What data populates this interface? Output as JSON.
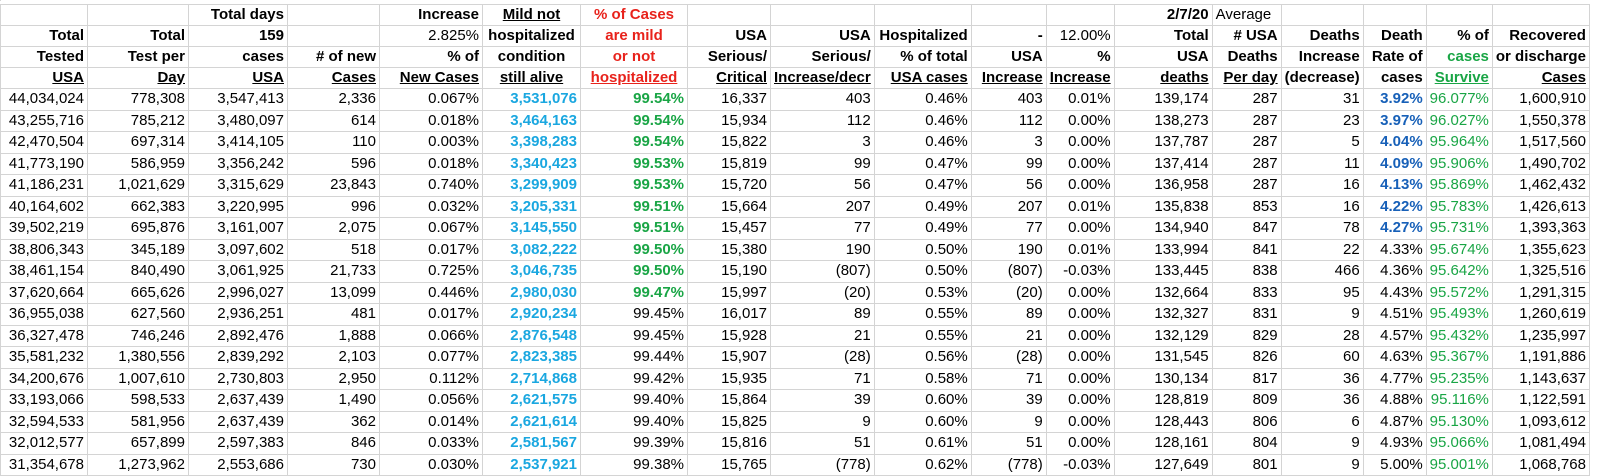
{
  "header": {
    "row1": [
      "",
      "",
      "Total days",
      "",
      "Increase",
      "Mild  not",
      "% of Cases",
      "",
      "",
      "",
      "",
      "",
      "2/7/20",
      "Average",
      "",
      "",
      "",
      ""
    ],
    "row2": [
      "Total",
      "Total",
      "159",
      "",
      "2.825%",
      "hospitalized",
      "are mild",
      "USA",
      "USA",
      "Hospitalized",
      "-",
      "12.00%",
      "Total",
      "# USA",
      "Deaths",
      "Death",
      "% of",
      "Recovered"
    ],
    "row3": [
      "Tested",
      "Test per",
      "cases",
      "# of  new",
      "% of",
      "condition",
      "or  not",
      "Serious/",
      "Serious/",
      "% of  total",
      "USA",
      "%",
      "USA",
      "Deaths",
      "Increase",
      "Rate of",
      "cases",
      "or discharge"
    ],
    "row4": [
      "USA",
      "Day",
      "USA",
      "Cases",
      "New Cases",
      "still alive",
      "hospitalized",
      "Critical",
      "Increase/decr",
      "USA cases",
      "Increase",
      "Increase",
      "deaths",
      "Per day",
      "(decrease)",
      "cases",
      "Survive",
      "Cases"
    ]
  },
  "rows": [
    [
      "44,034,024",
      "778,308",
      "3,547,413",
      "2,336",
      "0.067%",
      "3,531,076",
      "99.54%",
      "16,337",
      "403",
      "0.46%",
      "403",
      "0.01%",
      "139,174",
      "287",
      "31",
      "3.92%",
      "96.077%",
      "1,600,910"
    ],
    [
      "43,255,716",
      "785,212",
      "3,480,097",
      "614",
      "0.018%",
      "3,464,163",
      "99.54%",
      "15,934",
      "112",
      "0.46%",
      "112",
      "0.00%",
      "138,273",
      "287",
      "23",
      "3.97%",
      "96.027%",
      "1,550,378"
    ],
    [
      "42,470,504",
      "697,314",
      "3,414,105",
      "110",
      "0.003%",
      "3,398,283",
      "99.54%",
      "15,822",
      "3",
      "0.46%",
      "3",
      "0.00%",
      "137,787",
      "287",
      "5",
      "4.04%",
      "95.964%",
      "1,517,560"
    ],
    [
      "41,773,190",
      "586,959",
      "3,356,242",
      "596",
      "0.018%",
      "3,340,423",
      "99.53%",
      "15,819",
      "99",
      "0.47%",
      "99",
      "0.00%",
      "137,414",
      "287",
      "11",
      "4.09%",
      "95.906%",
      "1,490,702"
    ],
    [
      "41,186,231",
      "1,021,629",
      "3,315,629",
      "23,843",
      "0.740%",
      "3,299,909",
      "99.53%",
      "15,720",
      "56",
      "0.47%",
      "56",
      "0.00%",
      "136,958",
      "287",
      "16",
      "4.13%",
      "95.869%",
      "1,462,432"
    ],
    [
      "40,164,602",
      "662,383",
      "3,220,995",
      "996",
      "0.032%",
      "3,205,331",
      "99.51%",
      "15,664",
      "207",
      "0.49%",
      "207",
      "0.01%",
      "135,838",
      "853",
      "16",
      "4.22%",
      "95.783%",
      "1,426,613"
    ],
    [
      "39,502,219",
      "695,876",
      "3,161,007",
      "2,075",
      "0.067%",
      "3,145,550",
      "99.51%",
      "15,457",
      "77",
      "0.49%",
      "77",
      "0.00%",
      "134,940",
      "847",
      "78",
      "4.27%",
      "95.731%",
      "1,393,363"
    ],
    [
      "38,806,343",
      "345,189",
      "3,097,602",
      "518",
      "0.017%",
      "3,082,222",
      "99.50%",
      "15,380",
      "190",
      "0.50%",
      "190",
      "0.01%",
      "133,994",
      "841",
      "22",
      "4.33%",
      "95.674%",
      "1,355,623"
    ],
    [
      "38,461,154",
      "840,490",
      "3,061,925",
      "21,733",
      "0.725%",
      "3,046,735",
      "99.50%",
      "15,190",
      "(807)",
      "0.50%",
      "(807)",
      "-0.03%",
      "133,445",
      "838",
      "466",
      "4.36%",
      "95.642%",
      "1,325,516"
    ],
    [
      "37,620,664",
      "665,626",
      "2,996,027",
      "13,099",
      "0.446%",
      "2,980,030",
      "99.47%",
      "15,997",
      "(20)",
      "0.53%",
      "(20)",
      "0.00%",
      "132,664",
      "833",
      "95",
      "4.43%",
      "95.572%",
      "1,291,315"
    ],
    [
      "36,955,038",
      "627,560",
      "2,936,251",
      "481",
      "0.017%",
      "2,920,234",
      "99.45%",
      "16,017",
      "89",
      "0.55%",
      "89",
      "0.00%",
      "132,327",
      "831",
      "9",
      "4.51%",
      "95.493%",
      "1,260,619"
    ],
    [
      "36,327,478",
      "746,246",
      "2,892,476",
      "1,888",
      "0.066%",
      "2,876,548",
      "99.45%",
      "15,928",
      "21",
      "0.55%",
      "21",
      "0.00%",
      "132,129",
      "829",
      "28",
      "4.57%",
      "95.432%",
      "1,235,997"
    ],
    [
      "35,581,232",
      "1,380,556",
      "2,839,292",
      "2,103",
      "0.077%",
      "2,823,385",
      "99.44%",
      "15,907",
      "(28)",
      "0.56%",
      "(28)",
      "0.00%",
      "131,545",
      "826",
      "60",
      "4.63%",
      "95.367%",
      "1,191,886"
    ],
    [
      "34,200,676",
      "1,007,610",
      "2,730,803",
      "2,950",
      "0.112%",
      "2,714,868",
      "99.42%",
      "15,935",
      "71",
      "0.58%",
      "71",
      "0.00%",
      "130,134",
      "817",
      "36",
      "4.77%",
      "95.235%",
      "1,143,637"
    ],
    [
      "33,193,066",
      "598,533",
      "2,637,439",
      "1,490",
      "0.056%",
      "2,621,575",
      "99.40%",
      "15,864",
      "39",
      "0.60%",
      "39",
      "0.00%",
      "128,819",
      "809",
      "36",
      "4.88%",
      "95.116%",
      "1,122,591"
    ],
    [
      "32,594,533",
      "581,956",
      "2,637,439",
      "362",
      "0.014%",
      "2,621,614",
      "99.40%",
      "15,825",
      "9",
      "0.60%",
      "9",
      "0.00%",
      "128,443",
      "806",
      "6",
      "4.87%",
      "95.130%",
      "1,093,612"
    ],
    [
      "32,012,577",
      "657,899",
      "2,597,383",
      "846",
      "0.033%",
      "2,581,567",
      "99.39%",
      "15,816",
      "51",
      "0.61%",
      "51",
      "0.00%",
      "128,161",
      "804",
      "9",
      "4.93%",
      "95.066%",
      "1,081,494"
    ],
    [
      "31,354,678",
      "1,273,962",
      "2,553,686",
      "730",
      "0.030%",
      "2,537,921",
      "99.38%",
      "15,765",
      "(778)",
      "0.62%",
      "(778)",
      "-0.03%",
      "127,649",
      "801",
      "9",
      "5.00%",
      "95.001%",
      "1,068,768"
    ]
  ],
  "colors": {
    "red": "#e8221b",
    "blue": "#1aa7e0",
    "green": "#19a545",
    "dark_blue": "#1760b8"
  }
}
